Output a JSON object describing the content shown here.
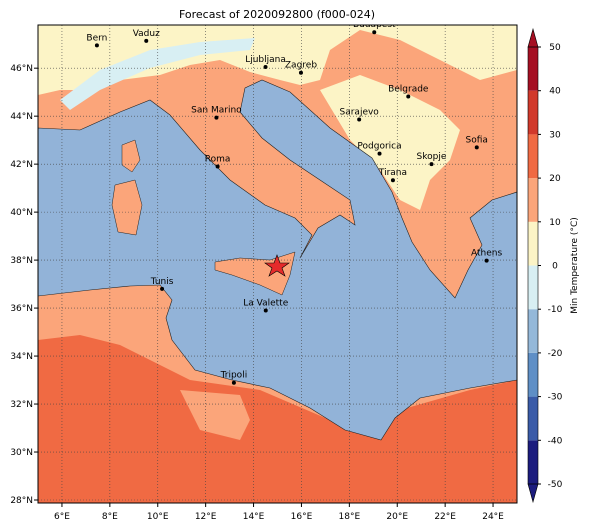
{
  "map": {
    "title": "Forecast of 2020092800 (f000-024)",
    "xlim": [
      5,
      25
    ],
    "ylim": [
      27.875,
      47.8
    ],
    "xticks": [
      {
        "value": 6,
        "label": "6°E"
      },
      {
        "value": 8,
        "label": "8°E"
      },
      {
        "value": 10,
        "label": "10°E"
      },
      {
        "value": 12,
        "label": "12°E"
      },
      {
        "value": 14,
        "label": "14°E"
      },
      {
        "value": 16,
        "label": "16°E"
      },
      {
        "value": 18,
        "label": "18°E"
      },
      {
        "value": 20,
        "label": "20°E"
      },
      {
        "value": 22,
        "label": "22°E"
      },
      {
        "value": 24,
        "label": "24°E"
      }
    ],
    "yticks": [
      {
        "value": 28,
        "label": "28°N"
      },
      {
        "value": 30,
        "label": "30°N"
      },
      {
        "value": 32,
        "label": "32°N"
      },
      {
        "value": 34,
        "label": "34°N"
      },
      {
        "value": 36,
        "label": "36°N"
      },
      {
        "value": 38,
        "label": "38°N"
      },
      {
        "value": 40,
        "label": "40°N"
      },
      {
        "value": 42,
        "label": "42°N"
      },
      {
        "value": 44,
        "label": "44°N"
      },
      {
        "value": 46,
        "label": "46°N"
      }
    ],
    "grid": true,
    "cities": [
      {
        "name": "Bern",
        "lon": 7.46,
        "lat": 46.95
      },
      {
        "name": "Vaduz",
        "lon": 9.52,
        "lat": 47.14
      },
      {
        "name": "Budapest",
        "lon": 19.04,
        "lat": 47.5
      },
      {
        "name": "Ljubljana",
        "lon": 14.5,
        "lat": 46.05
      },
      {
        "name": "Zagreb",
        "lon": 15.98,
        "lat": 45.81
      },
      {
        "name": "Belgrade",
        "lon": 20.46,
        "lat": 44.82
      },
      {
        "name": "San Marino",
        "lon": 12.45,
        "lat": 43.94
      },
      {
        "name": "Sarajevo",
        "lon": 18.41,
        "lat": 43.86
      },
      {
        "name": "Sofia",
        "lon": 23.32,
        "lat": 42.7
      },
      {
        "name": "Podgorica",
        "lon": 19.26,
        "lat": 42.44
      },
      {
        "name": "Skopje",
        "lon": 21.43,
        "lat": 42.0
      },
      {
        "name": "Roma",
        "lon": 12.5,
        "lat": 41.9
      },
      {
        "name": "Tirana",
        "lon": 19.82,
        "lat": 41.33
      },
      {
        "name": "Athens",
        "lon": 23.73,
        "lat": 37.98
      },
      {
        "name": "Tunis",
        "lon": 10.18,
        "lat": 36.8
      },
      {
        "name": "La Valette",
        "lon": 14.51,
        "lat": 35.9
      },
      {
        "name": "Tripoli",
        "lon": 13.18,
        "lat": 32.89
      }
    ],
    "colorbar": {
      "label": "Min Temperature (°C)",
      "lim": [
        -50,
        50
      ],
      "ticks": [
        -50,
        -40,
        -30,
        -20,
        -10,
        0,
        10,
        20,
        30,
        40,
        50
      ],
      "colors": [
        "#1c1c7e",
        "#3a5ba8",
        "#5f8fc6",
        "#94b8d9",
        "#d8eff3",
        "#fcf4c6",
        "#fba57a",
        "#f06a43",
        "#d1392b",
        "#a50f22"
      ]
    }
  }
}
